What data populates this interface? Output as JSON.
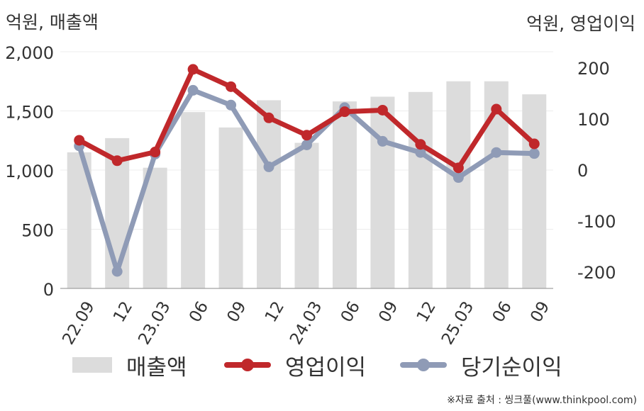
{
  "units": {
    "left": "억원, 매출액",
    "right": "억원, 영업이익"
  },
  "chart_data": {
    "type": "bar+line",
    "categories": [
      "22.09",
      "12",
      "23.03",
      "06",
      "09",
      "12",
      "24.03",
      "06",
      "09",
      "12",
      "25.03",
      "06",
      "09"
    ],
    "y_left": {
      "ylim": [
        0,
        2000
      ],
      "ticks": [
        "0",
        "500",
        "1,000",
        "1,500",
        "2,000"
      ]
    },
    "y_right": {
      "ylim": [
        -230,
        230
      ],
      "ticks": [
        "-200",
        "-100",
        "0",
        "100",
        "200"
      ]
    },
    "series": [
      {
        "name": "매출액",
        "kind": "bar",
        "axis": "left",
        "color": "#dcdcdc",
        "values": [
          1150,
          1270,
          1020,
          1490,
          1360,
          1590,
          1230,
          1580,
          1620,
          1660,
          1750,
          1750,
          1640
        ]
      },
      {
        "name": "영업이익",
        "kind": "line",
        "axis": "right",
        "color": "#c0282b",
        "values": [
          57,
          17,
          34,
          196,
          162,
          101,
          67,
          113,
          116,
          49,
          3,
          118,
          50
        ]
      },
      {
        "name": "당기순이익",
        "kind": "line",
        "axis": "right",
        "color": "#8f9bb6",
        "values": [
          46,
          -200,
          30,
          155,
          126,
          5,
          48,
          121,
          55,
          33,
          -16,
          33,
          31
        ]
      }
    ],
    "grid": true,
    "legend": "bottom"
  },
  "source": "※자료 출처 : 씽크풀(www.thinkpool.com)"
}
